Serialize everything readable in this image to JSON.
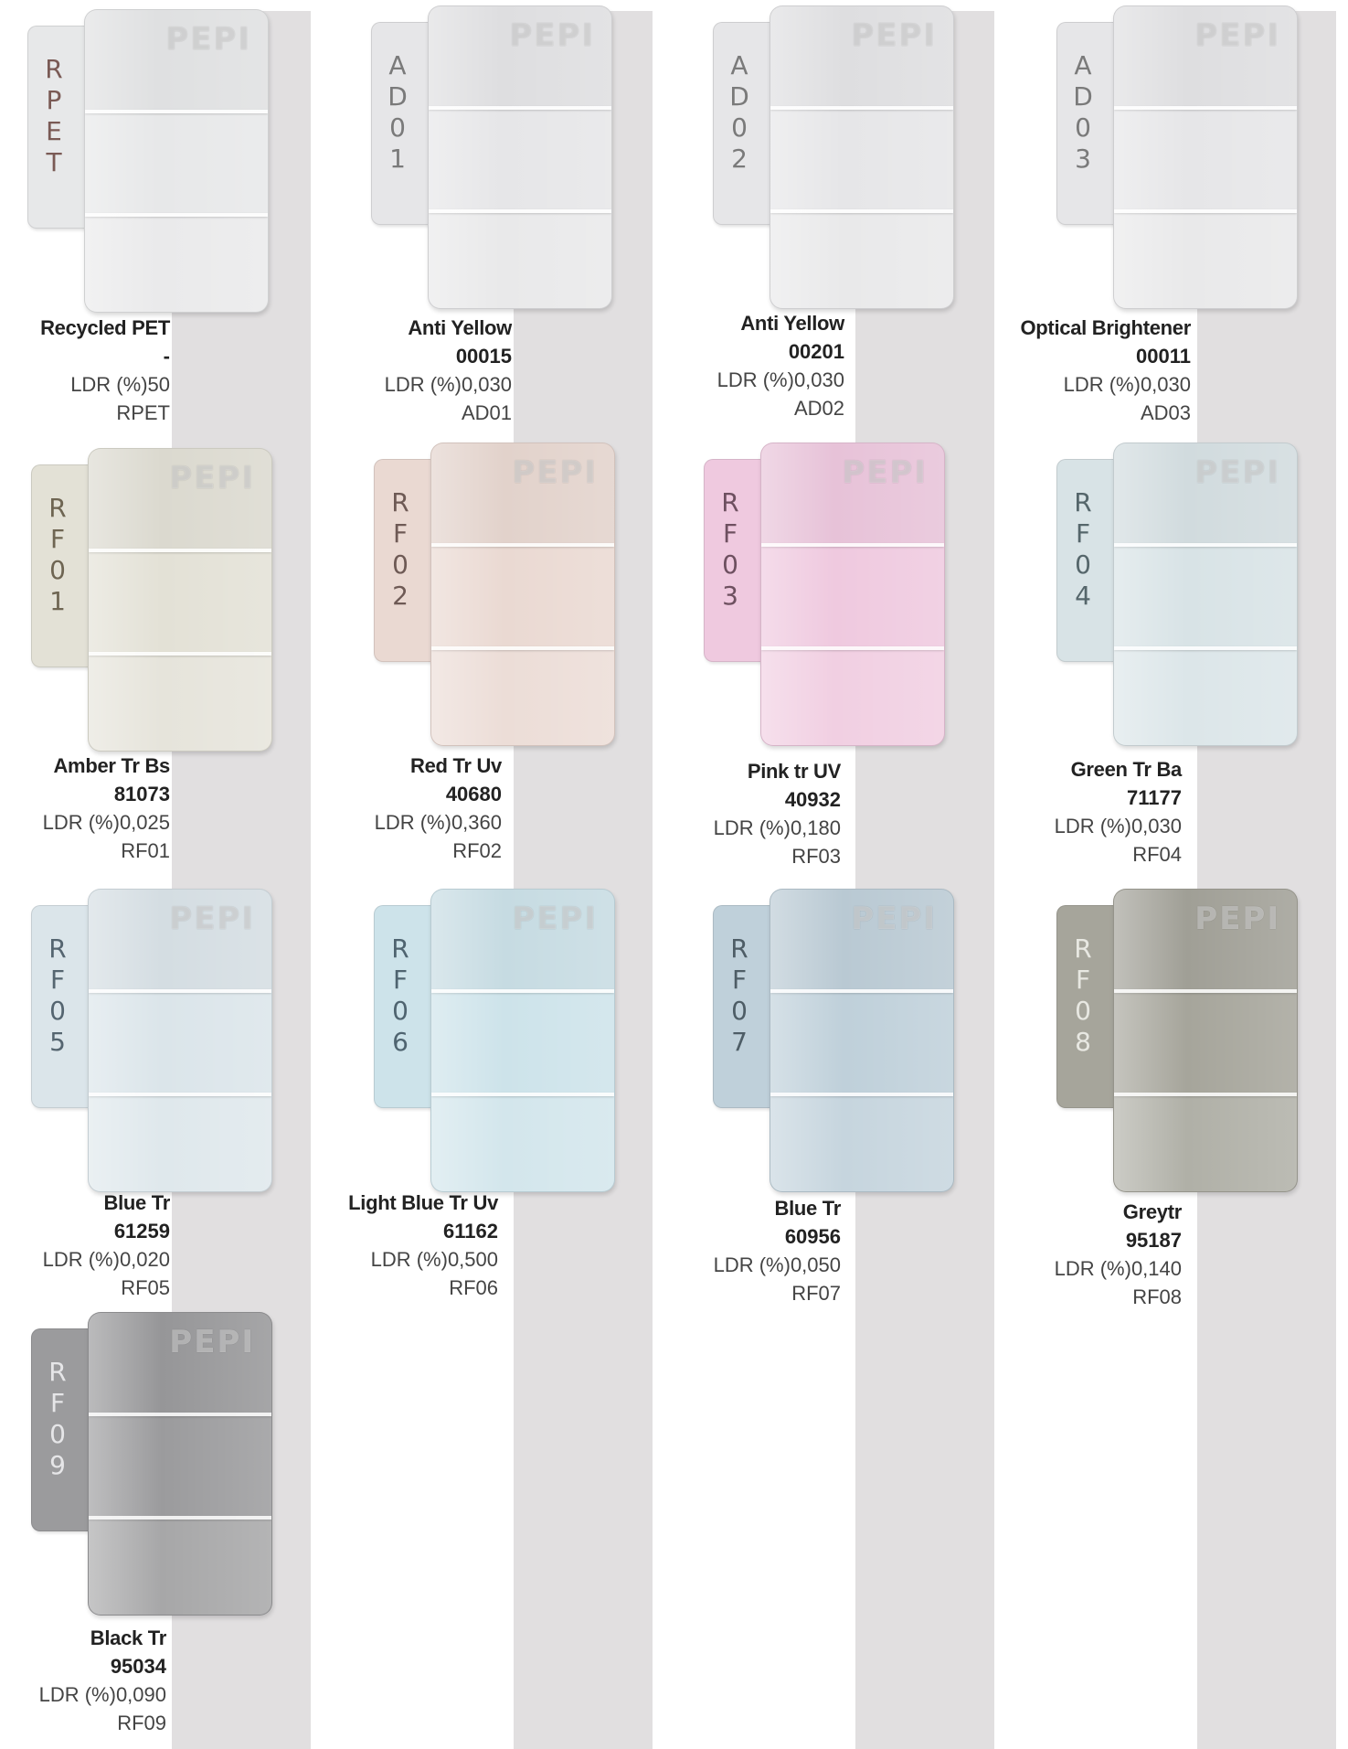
{
  "colors": {
    "stripe": "#e1dfe0"
  },
  "samples": [
    {
      "tab": [
        "R",
        "P",
        "E",
        "T"
      ],
      "logo": "PEPI",
      "name": "Recycled PET",
      "code": "-",
      "ldr": "LDR (%)50",
      "ref": "RPET",
      "color": "#e7e8e9",
      "text_color": "#7a5a55"
    },
    {
      "tab": [
        "A",
        "D",
        "0",
        "1"
      ],
      "logo": "PEPI",
      "name": "Anti Yellow",
      "code": "00015",
      "ldr": "LDR (%)0,030",
      "ref": "AD01",
      "color": "#e6e6e8",
      "text_color": "#7a7a7a"
    },
    {
      "tab": [
        "A",
        "D",
        "0",
        "2"
      ],
      "logo": "PEPI",
      "name": "Anti Yellow",
      "code": "00201",
      "ldr": "LDR (%)0,030",
      "ref": "AD02",
      "color": "#e6e6e8",
      "text_color": "#7a7a7a"
    },
    {
      "tab": [
        "A",
        "D",
        "0",
        "3"
      ],
      "logo": "PEPI",
      "name": "Optical  Brightener",
      "code": "00011",
      "ldr": "LDR (%)0,030",
      "ref": "AD03",
      "color": "#e6e6e8",
      "text_color": "#7a7a7a"
    },
    {
      "tab": [
        "R",
        "F",
        "0",
        "1"
      ],
      "logo": "PEPI",
      "name": "Amber Tr Bs",
      "code": "81073",
      "ldr": "LDR (%)0,025",
      "ref": "RF01",
      "color": "#e3e1d6",
      "text_color": "#6e6552"
    },
    {
      "tab": [
        "R",
        "F",
        "0",
        "2"
      ],
      "logo": "PEPI",
      "name": "Red Tr Uv",
      "code": "40680",
      "ldr": "LDR (%)0,360",
      "ref": "RF02",
      "color": "#ead9d2",
      "text_color": "#6e5a55"
    },
    {
      "tab": [
        "R",
        "F",
        "0",
        "3"
      ],
      "logo": "PEPI",
      "name": "Pink tr UV",
      "code": "40932",
      "ldr": "LDR (%)0,180",
      "ref": "RF03",
      "color": "#efc9df",
      "text_color": "#6e5060"
    },
    {
      "tab": [
        "R",
        "F",
        "0",
        "4"
      ],
      "logo": "PEPI",
      "name": "Green Tr Ba",
      "code": "71177",
      "ldr": "LDR (%)0,030",
      "ref": "RF04",
      "color": "#d8e3e6",
      "text_color": "#55666b"
    },
    {
      "tab": [
        "R",
        "F",
        "0",
        "5"
      ],
      "logo": "PEPI",
      "name": "Blue Tr",
      "code": "61259",
      "ldr": "LDR (%)0,020",
      "ref": "RF05",
      "color": "#dbe5ea",
      "text_color": "#556570"
    },
    {
      "tab": [
        "R",
        "F",
        "0",
        "6"
      ],
      "logo": "PEPI",
      "name": "Light Blue Tr Uv",
      "code": "61162",
      "ldr": "LDR (%)0,500",
      "ref": "RF06",
      "color": "#cde3ea",
      "text_color": "#4f6470"
    },
    {
      "tab": [
        "R",
        "F",
        "0",
        "7"
      ],
      "logo": "PEPI",
      "name": "Blue Tr",
      "code": "60956",
      "ldr": "LDR (%)0,050",
      "ref": "RF07",
      "color": "#bfd0da",
      "text_color": "#4e5d66"
    },
    {
      "tab": [
        "R",
        "F",
        "0",
        "8"
      ],
      "logo": "PEPI",
      "name": "Greytr",
      "code": "95187",
      "ldr": "LDR (%)0,140",
      "ref": "RF08",
      "color": "#a6a59b",
      "text_color": "#e8e8e2"
    },
    {
      "tab": [
        "R",
        "F",
        "0",
        "9"
      ],
      "logo": "PEPI",
      "name": "Black Tr",
      "code": "95034",
      "ldr": "LDR (%)0,090",
      "ref": "RF09",
      "color": "#9b9b9d",
      "text_color": "#e6e6e8"
    }
  ]
}
